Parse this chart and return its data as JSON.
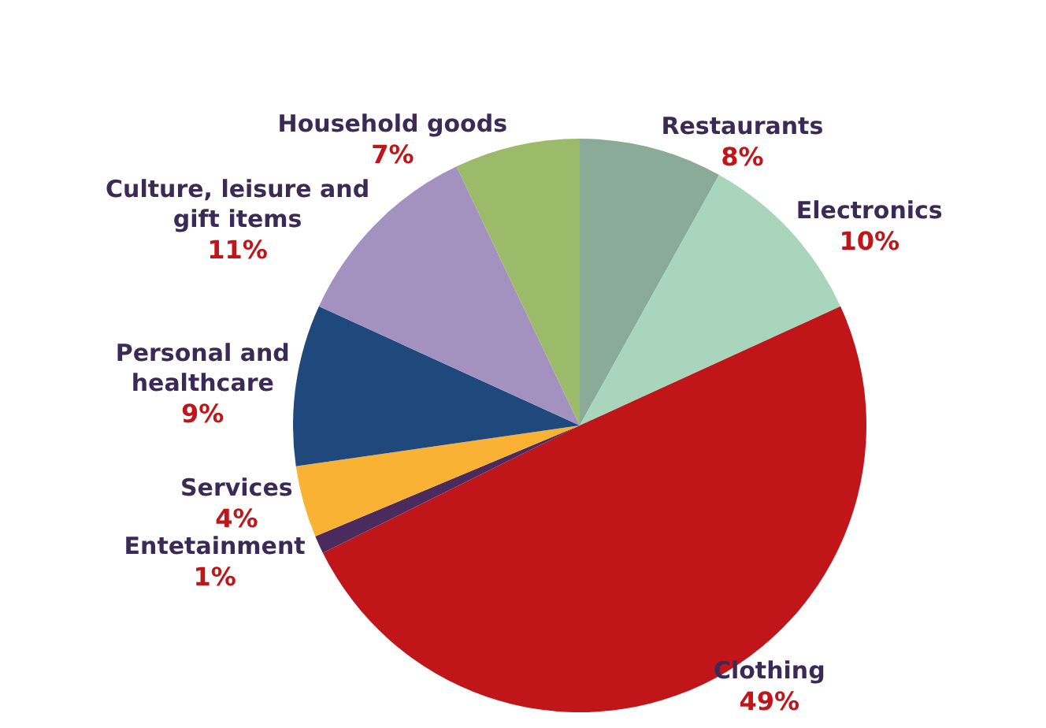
{
  "chart_data": {
    "type": "pie",
    "categories": [
      "Restaurants",
      "Electronics",
      "Clothing",
      "Entetainment",
      "Services",
      "Personal and healthcare",
      "Culture, leisure and gift items",
      "Household goods"
    ],
    "values": [
      8,
      10,
      49,
      1,
      4,
      9,
      11,
      7
    ],
    "value_labels": [
      "8%",
      "10%",
      "49%",
      "1%",
      "4%",
      "9%",
      "11%",
      "7%"
    ],
    "colors": [
      "#8aab98",
      "#a9d5bc",
      "#c0161a",
      "#4b2a5e",
      "#f9b233",
      "#1f497d",
      "#a391c0",
      "#9bbb6a"
    ],
    "legend": false
  }
}
